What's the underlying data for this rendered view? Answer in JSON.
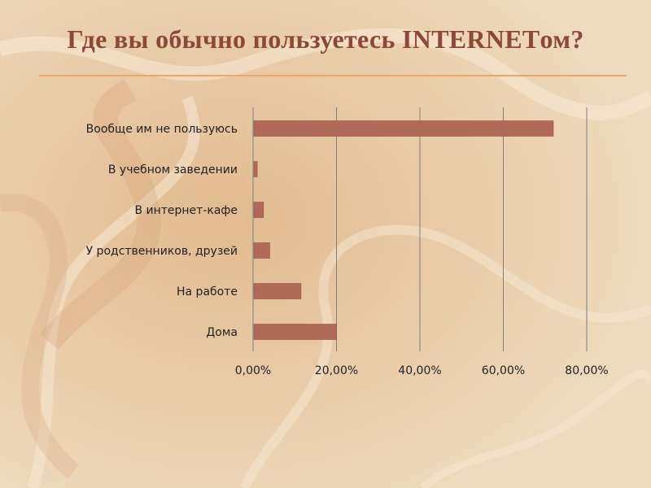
{
  "slide": {
    "title": "Где вы обычно пользуетесь INTERNETом?",
    "accent_color": "#e8a86a",
    "title_color": "#8a4a3a"
  },
  "chart_data": {
    "type": "bar",
    "orientation": "horizontal",
    "categories": [
      "Вообще им не пользуюсь",
      "В учебном заведении",
      "В интернет-кафе",
      "У родственников, друзей",
      "На работе",
      "Дома"
    ],
    "values": [
      72,
      1,
      2.5,
      4,
      11.5,
      20
    ],
    "value_unit": "%",
    "xlim": [
      0,
      80
    ],
    "x_ticks": [
      "0,00%",
      "20,00%",
      "40,00%",
      "60,00%",
      "80,00%"
    ],
    "x_tick_values": [
      0,
      20,
      40,
      60,
      80
    ],
    "grid": true,
    "bar_color": "#b06a57",
    "title": "",
    "xlabel": "",
    "ylabel": ""
  }
}
